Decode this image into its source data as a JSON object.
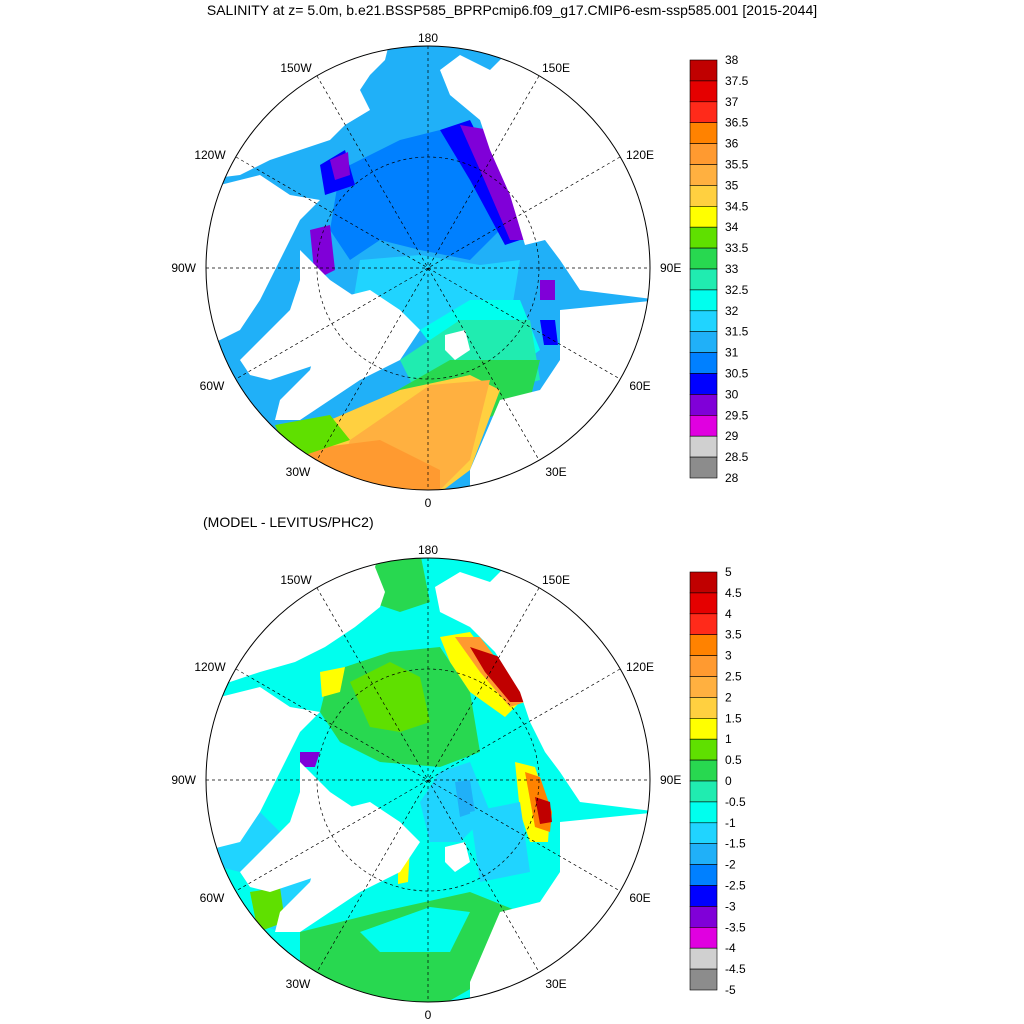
{
  "title": "SALINITY at z=   5.0m, b.e21.BSSP585_BPRPcmip6.f09_g17.CMIP6-esm-ssp585.001 [2015-2044]",
  "subtitle": "(MODEL - LEVITUS/PHC2)",
  "projection": "north-polar-stereographic",
  "longitude_labels": {
    "top": "180",
    "bottom": "0",
    "left": "90W",
    "right": "90E",
    "upper_left_1": "150W",
    "upper_left_2": "120W",
    "upper_right_1": "150E",
    "upper_right_2": "120E",
    "lower_left_1": "60W",
    "lower_left_2": "30W",
    "lower_right_1": "60E",
    "lower_right_2": "30E"
  },
  "panel_top": {
    "name": "salinity",
    "colorbar_labels": [
      "38",
      "37.5",
      "37",
      "36.5",
      "36",
      "35.5",
      "35",
      "34.5",
      "34",
      "33.5",
      "33",
      "32.5",
      "32",
      "31.5",
      "31",
      "30.5",
      "30",
      "29.5",
      "29",
      "28.5",
      "28"
    ],
    "colorbar_colors": [
      "#c00000",
      "#e50000",
      "#ff2a1a",
      "#ff8200",
      "#ff9a30",
      "#ffb040",
      "#ffd040",
      "#ffff00",
      "#5fe000",
      "#28d850",
      "#20ecb0",
      "#00ffee",
      "#20d4ff",
      "#20b0f8",
      "#0080ff",
      "#0000ff",
      "#8000d8",
      "#e000e0",
      "#d0d0d0",
      "#8c8c8c"
    ]
  },
  "panel_bottom": {
    "name": "difference",
    "colorbar_labels": [
      "5",
      "4.5",
      "4",
      "3.5",
      "3",
      "2.5",
      "2",
      "1.5",
      "1",
      "0.5",
      "0",
      "-0.5",
      "-1",
      "-1.5",
      "-2",
      "-2.5",
      "-3",
      "-3.5",
      "-4",
      "-4.5",
      "-5"
    ],
    "colorbar_colors": [
      "#c00000",
      "#e50000",
      "#ff2a1a",
      "#ff8200",
      "#ff9a30",
      "#ffb040",
      "#ffd040",
      "#ffff00",
      "#5fe000",
      "#28d850",
      "#20ecb0",
      "#00ffee",
      "#20d4ff",
      "#20b0f8",
      "#0080ff",
      "#0000ff",
      "#8000d8",
      "#e000e0",
      "#d0d0d0",
      "#8c8c8c"
    ]
  }
}
